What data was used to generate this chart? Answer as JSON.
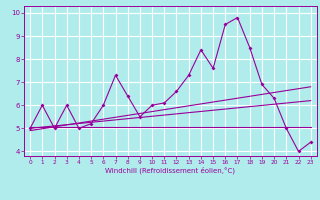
{
  "title": "",
  "xlabel": "Windchill (Refroidissement éolien,°C)",
  "ylabel": "",
  "bg_color": "#b0ecec",
  "line_color": "#990099",
  "grid_color": "#ffffff",
  "xlim": [
    -0.5,
    23.5
  ],
  "ylim": [
    3.8,
    10.3
  ],
  "xticks": [
    0,
    1,
    2,
    3,
    4,
    5,
    6,
    7,
    8,
    9,
    10,
    11,
    12,
    13,
    14,
    15,
    16,
    17,
    18,
    19,
    20,
    21,
    22,
    23
  ],
  "yticks": [
    4,
    5,
    6,
    7,
    8,
    9,
    10
  ],
  "series1_x": [
    0,
    1,
    2,
    3,
    4,
    5,
    6,
    7,
    8,
    9,
    10,
    11,
    12,
    13,
    14,
    15,
    16,
    17,
    18,
    19,
    20,
    21,
    22,
    23
  ],
  "series1_y": [
    5.0,
    6.0,
    5.0,
    6.0,
    5.0,
    5.2,
    6.0,
    7.3,
    6.4,
    5.5,
    6.0,
    6.1,
    6.6,
    7.3,
    8.4,
    7.6,
    9.5,
    9.8,
    8.5,
    6.9,
    6.3,
    5.0,
    4.0,
    4.4
  ],
  "series2_x": [
    0,
    23
  ],
  "series2_y": [
    4.9,
    6.8
  ],
  "series3_x": [
    0,
    23
  ],
  "series3_y": [
    5.0,
    6.2
  ],
  "series4_x": [
    0,
    23
  ],
  "series4_y": [
    5.05,
    5.05
  ]
}
